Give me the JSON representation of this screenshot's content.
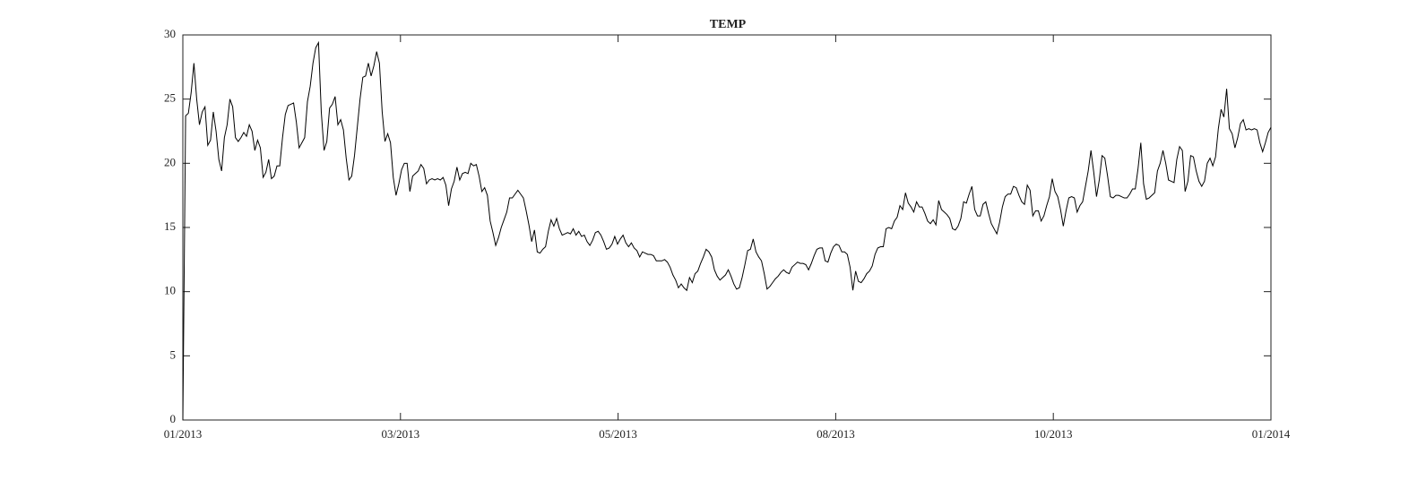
{
  "chart_data": {
    "type": "line",
    "title": "TEMP",
    "color": "#000000",
    "xlim": [
      0,
      393
    ],
    "xticks": [
      {
        "value": 0,
        "label": "01/2013"
      },
      {
        "value": 78.6,
        "label": "03/2013"
      },
      {
        "value": 157.2,
        "label": "05/2013"
      },
      {
        "value": 235.8,
        "label": "08/2013"
      },
      {
        "value": 314.4,
        "label": "10/2013"
      },
      {
        "value": 393,
        "label": "01/2014"
      }
    ],
    "ylim": [
      0,
      30
    ],
    "yticks": [
      0,
      5,
      10,
      15,
      20,
      25,
      30
    ],
    "x": [
      0,
      1,
      2,
      3,
      4,
      5,
      6,
      7,
      8,
      9,
      10,
      11,
      12,
      13,
      14,
      15,
      16,
      17,
      18,
      19,
      20,
      21,
      22,
      23,
      24,
      25,
      26,
      27,
      28,
      29,
      30,
      31,
      32,
      33,
      34,
      35,
      36,
      37,
      38,
      39,
      40,
      41,
      42,
      43,
      44,
      45,
      46,
      47,
      48,
      49,
      50,
      51,
      52,
      53,
      54,
      55,
      56,
      57,
      58,
      59,
      60,
      61,
      62,
      63,
      64,
      65,
      66,
      67,
      68,
      69,
      70,
      71,
      72,
      73,
      74,
      75,
      76,
      77,
      78,
      79,
      80,
      81,
      82,
      83,
      84,
      85,
      86,
      87,
      88,
      89,
      90,
      91,
      92,
      93,
      94,
      95,
      96,
      97,
      98,
      99,
      100,
      101,
      102,
      103,
      104,
      105,
      106,
      107,
      108,
      109,
      110,
      111,
      112,
      113,
      114,
      115,
      116,
      117,
      118,
      119,
      120,
      121,
      122,
      123,
      124,
      125,
      126,
      127,
      128,
      129,
      130,
      131,
      132,
      133,
      134,
      135,
      136,
      137,
      138,
      139,
      140,
      141,
      142,
      143,
      144,
      145,
      146,
      147,
      148,
      149,
      150,
      151,
      152,
      153,
      154,
      155,
      156,
      157,
      158,
      159,
      160,
      161,
      162,
      163,
      164,
      165,
      166,
      167,
      168,
      169,
      170,
      171,
      172,
      173,
      174,
      175,
      176,
      177,
      178,
      179,
      180,
      181,
      182,
      183,
      184,
      185,
      186,
      187,
      188,
      189,
      190,
      191,
      192,
      193,
      194,
      195,
      196,
      197,
      198,
      199,
      200,
      201,
      202,
      203,
      204,
      205,
      206,
      207,
      208,
      209,
      210,
      211,
      212,
      213,
      214,
      215,
      216,
      217,
      218,
      219,
      220,
      221,
      222,
      223,
      224,
      225,
      226,
      227,
      228,
      229,
      230,
      231,
      232,
      233,
      234,
      235,
      236,
      237,
      238,
      239,
      240,
      241,
      242,
      243,
      244,
      245,
      246,
      247,
      248,
      249,
      250,
      251,
      252,
      253,
      254,
      255,
      256,
      257,
      258,
      259,
      260,
      261,
      262,
      263,
      264,
      265,
      266,
      267,
      268,
      269,
      270,
      271,
      272,
      273,
      274,
      275,
      276,
      277,
      278,
      279,
      280,
      281,
      282,
      283,
      284,
      285,
      286,
      287,
      288,
      289,
      290,
      291,
      292,
      293,
      294,
      295,
      296,
      297,
      298,
      299,
      300,
      301,
      302,
      303,
      304,
      305,
      306,
      307,
      308,
      309,
      310,
      311,
      312,
      313,
      314,
      315,
      316,
      317,
      318,
      319,
      320,
      321,
      322,
      323,
      324,
      325,
      326,
      327,
      328,
      329,
      330,
      331,
      332,
      333,
      334,
      335,
      336,
      337,
      338,
      339,
      340,
      341,
      342,
      343,
      344,
      345,
      346,
      347,
      348,
      349,
      350,
      351,
      352,
      353,
      354,
      355,
      356,
      357,
      358,
      359,
      360,
      361,
      362,
      363,
      364,
      365,
      366,
      367,
      368,
      369,
      370,
      371,
      372,
      373,
      374,
      375,
      376,
      377,
      378,
      379,
      380,
      381,
      382,
      383,
      384,
      385,
      386,
      387,
      388,
      389,
      390,
      391,
      392,
      393
    ],
    "values": [
      0,
      23.7,
      23.9,
      25.5,
      27.8,
      25,
      23,
      24,
      24.4,
      21.4,
      21.8,
      24,
      22.5,
      20.3,
      19.4,
      22,
      23,
      25,
      24.4,
      22,
      21.7,
      22,
      22.4,
      22.1,
      23,
      22.5,
      21,
      21.8,
      21.2,
      18.9,
      19.3,
      20.3,
      18.8,
      19,
      19.8,
      19.8,
      22,
      23.8,
      24.5,
      24.6,
      24.7,
      23.2,
      21.2,
      21.6,
      22,
      24.8,
      26,
      27.8,
      29,
      29.4,
      24,
      21,
      21.7,
      24.3,
      24.6,
      25.2,
      23,
      23.4,
      22.6,
      20.4,
      18.7,
      19,
      20.6,
      22.8,
      25,
      26.7,
      26.8,
      27.8,
      26.8,
      27.6,
      28.7,
      27.8,
      24,
      21.7,
      22.3,
      21.6,
      18.9,
      17.5,
      18.4,
      19.5,
      20,
      20,
      17.8,
      19,
      19.2,
      19.4,
      19.9,
      19.6,
      18.4,
      18.7,
      18.8,
      18.7,
      18.8,
      18.7,
      18.9,
      18.3,
      16.7,
      18,
      18.6,
      19.7,
      18.7,
      19.2,
      19.3,
      19.2,
      20,
      19.8,
      19.9,
      19,
      17.8,
      18.1,
      17.5,
      15.5,
      14.6,
      13.6,
      14.2,
      15,
      15.6,
      16.2,
      17.3,
      17.3,
      17.6,
      17.9,
      17.6,
      17.3,
      16.3,
      15.2,
      13.9,
      14.8,
      13.1,
      13,
      13.3,
      13.5,
      14.7,
      15.6,
      15.1,
      15.7,
      14.9,
      14.4,
      14.5,
      14.6,
      14.5,
      14.9,
      14.4,
      14.7,
      14.3,
      14.4,
      13.9,
      13.6,
      14,
      14.6,
      14.7,
      14.4,
      13.9,
      13.3,
      13.4,
      13.7,
      14.3,
      13.7,
      14.1,
      14.4,
      13.8,
      13.5,
      13.8,
      13.4,
      13.2,
      12.7,
      13.1,
      13,
      12.9,
      12.9,
      12.8,
      12.4,
      12.4,
      12.4,
      12.5,
      12.3,
      11.9,
      11.3,
      10.9,
      10.3,
      10.6,
      10.3,
      10.1,
      11.1,
      10.7,
      11.4,
      11.6,
      12.2,
      12.7,
      13.3,
      13.1,
      12.7,
      11.7,
      11.2,
      10.9,
      11.1,
      11.3,
      11.7,
      11.2,
      10.6,
      10.2,
      10.3,
      11.1,
      12.1,
      13.2,
      13.3,
      14.1,
      13.1,
      12.7,
      12.4,
      11.4,
      10.2,
      10.4,
      10.7,
      11,
      11.2,
      11.5,
      11.7,
      11.5,
      11.4,
      11.9,
      12.1,
      12.3,
      12.2,
      12.2,
      12.1,
      11.7,
      12.2,
      12.8,
      13.3,
      13.4,
      13.4,
      12.4,
      12.3,
      13,
      13.5,
      13.7,
      13.6,
      13.1,
      13.1,
      12.9,
      11.9,
      10.1,
      11.6,
      10.8,
      10.7,
      11,
      11.4,
      11.6,
      12,
      12.9,
      13.4,
      13.5,
      13.5,
      14.9,
      15,
      14.9,
      15.5,
      15.8,
      16.7,
      16.4,
      17.7,
      16.9,
      16.6,
      16.2,
      17,
      16.6,
      16.6,
      16.1,
      15.5,
      15.3,
      15.6,
      15.2,
      17.1,
      16.4,
      16.2,
      16,
      15.7,
      14.9,
      14.8,
      15.1,
      15.7,
      17,
      16.9,
      17.6,
      18.2,
      16.4,
      15.9,
      15.9,
      16.8,
      17,
      16.1,
      15.3,
      14.9,
      14.5,
      15.4,
      16.6,
      17.4,
      17.6,
      17.6,
      18.2,
      18.1,
      17.5,
      17,
      16.8,
      18.3,
      17.9,
      15.9,
      16.3,
      16.3,
      15.5,
      15.9,
      16.7,
      17.4,
      18.8,
      17.8,
      17.4,
      16.4,
      15.1,
      16.3,
      17.3,
      17.4,
      17.3,
      16.2,
      16.7,
      17,
      18.2,
      19.4,
      21,
      19.3,
      17.4,
      18.7,
      20.6,
      20.4,
      19,
      17.4,
      17.3,
      17.5,
      17.5,
      17.4,
      17.3,
      17.3,
      17.6,
      18,
      18,
      19.6,
      21.6,
      18.4,
      17.2,
      17.3,
      17.5,
      17.7,
      19.4,
      20,
      21,
      20,
      18.7,
      18.6,
      18.5,
      20.3,
      21.3,
      21,
      17.8,
      18.6,
      20.6,
      20.5,
      19.4,
      18.6,
      18.2,
      18.6,
      20,
      20.4,
      19.8,
      20.5,
      22.7,
      24.2,
      23.6,
      25.8,
      22.7,
      22.3,
      21.2,
      22,
      23.1,
      23.4,
      22.6,
      22.7,
      22.6,
      22.7,
      22.6,
      21.6,
      20.9,
      21.6,
      22.4,
      22.8
    ]
  }
}
